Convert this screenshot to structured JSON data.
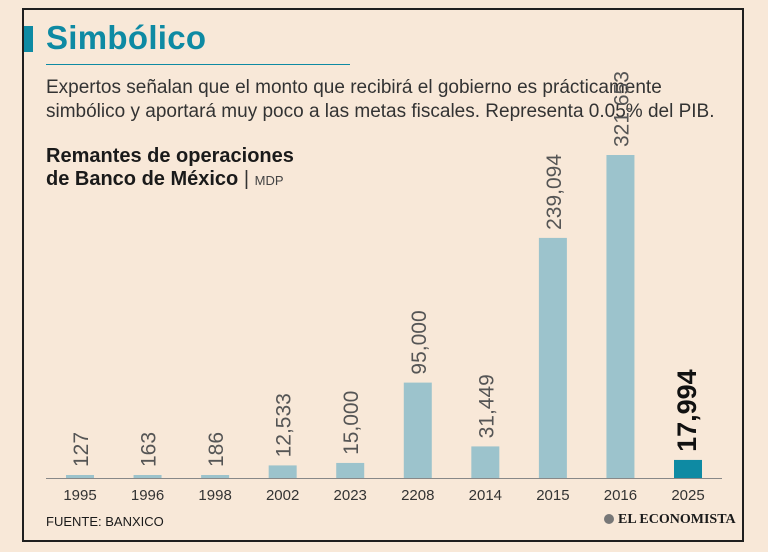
{
  "header": {
    "title": "Simbólico",
    "subtitle": "Expertos señalan que el monto que recibirá el gobierno es prácticamente simbólico y aportará muy poco a las metas fiscales. Representa 0.05% del PIB."
  },
  "chart_title_line1": "Remantes de operaciones",
  "chart_title_line2": "de Banco de México",
  "chart_title_sep": "|",
  "chart_unit": "MDP",
  "footer": {
    "source": "FUENTE: BANXICO",
    "brand": "EL ECONOMISTA"
  },
  "colors": {
    "accent": "#0e8aa3",
    "bar": "#9cc3cc",
    "highlight": "#0e8aa3",
    "background": "#f8e8d8"
  },
  "chart_data": {
    "type": "bar",
    "title": "Remantes de operaciones de Banco de México",
    "ylabel": "MDP",
    "categories": [
      "1995",
      "1996",
      "1998",
      "2002",
      "2023",
      "2208",
      "2014",
      "2015",
      "2016",
      "2025"
    ],
    "values": [
      127,
      163,
      186,
      12533,
      15000,
      95000,
      31449,
      239094,
      321653,
      17994
    ],
    "labels": [
      "127",
      "163",
      "186",
      "12,533",
      "15,000",
      "95,000",
      "31,449",
      "239,094",
      "321,653",
      "17,994"
    ],
    "highlight_index": 9,
    "ylim": [
      0,
      321653
    ]
  }
}
